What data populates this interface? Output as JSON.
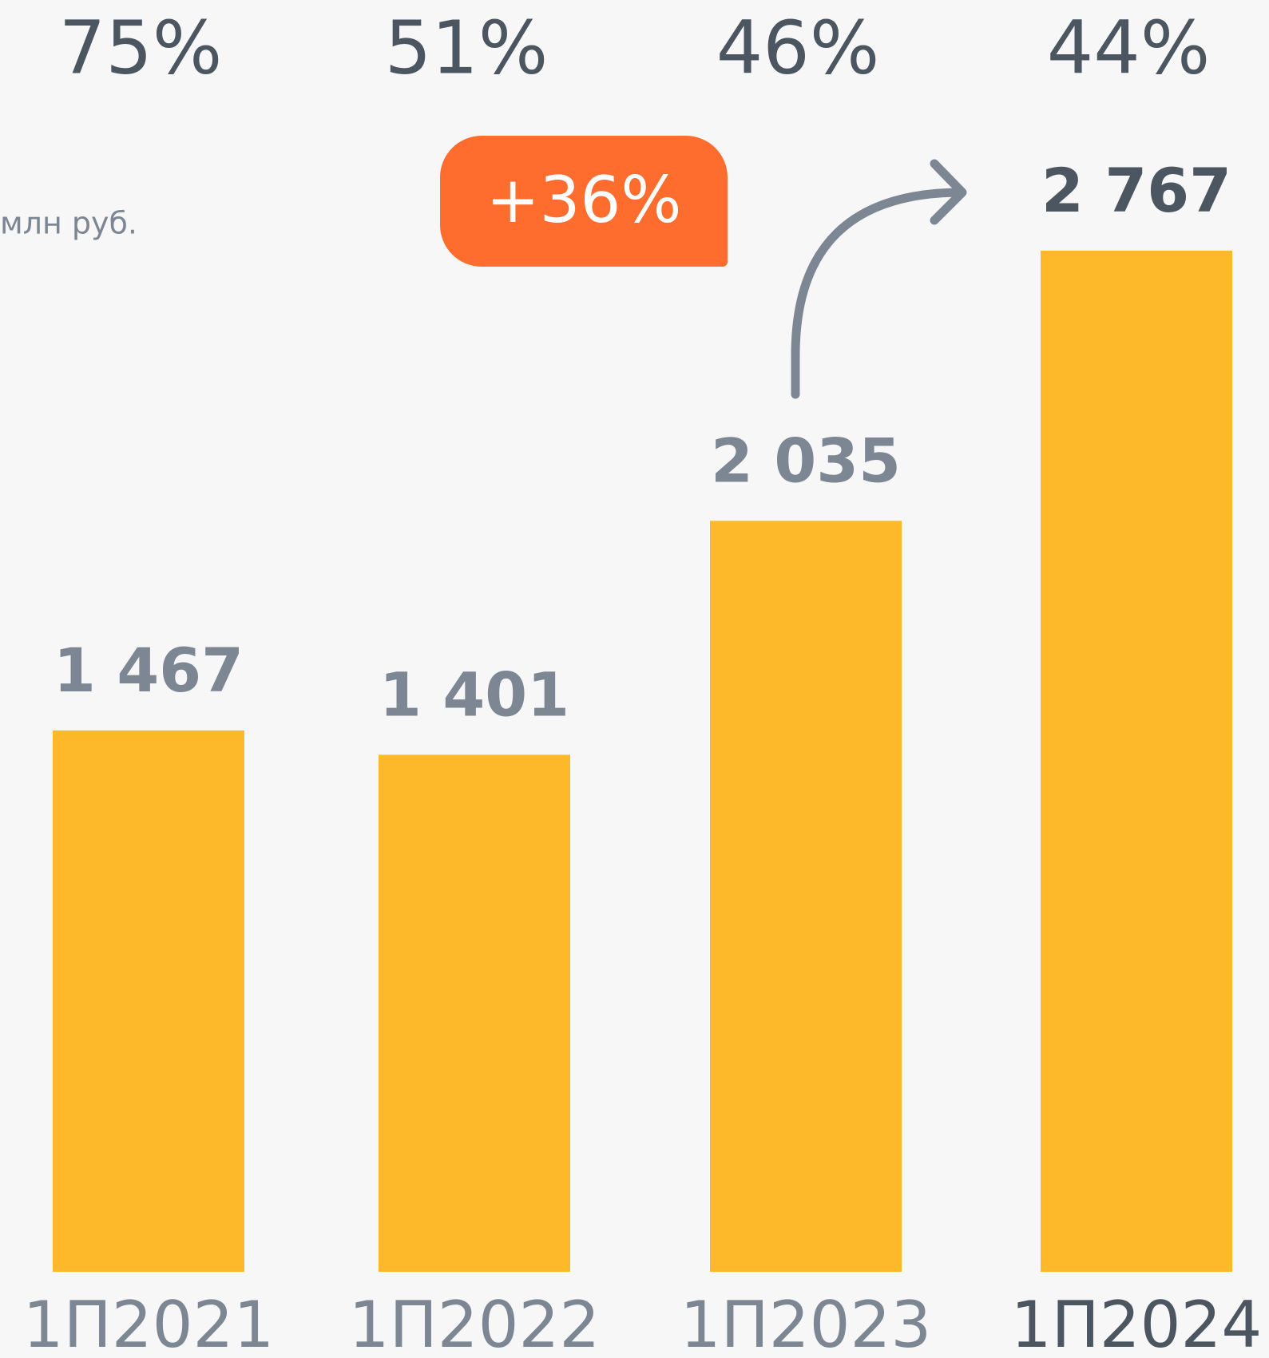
{
  "chart_data": {
    "type": "bar",
    "unit": "млн руб.",
    "categories": [
      "1П2021",
      "1П2022",
      "1П2023",
      "1П2024"
    ],
    "values": [
      1467,
      1401,
      2035,
      2767
    ],
    "value_labels": [
      "1 467",
      "1 401",
      "2 035",
      "2 767"
    ],
    "top_labels": [
      "75%",
      "51%",
      "46%",
      "44%"
    ],
    "growth_label": "+36%",
    "color": "#fdb92a",
    "label_colors": [
      "#7d8794",
      "#7d8794",
      "#7d8794",
      "#4b5661"
    ],
    "badge_color": "#ff6d2e"
  }
}
